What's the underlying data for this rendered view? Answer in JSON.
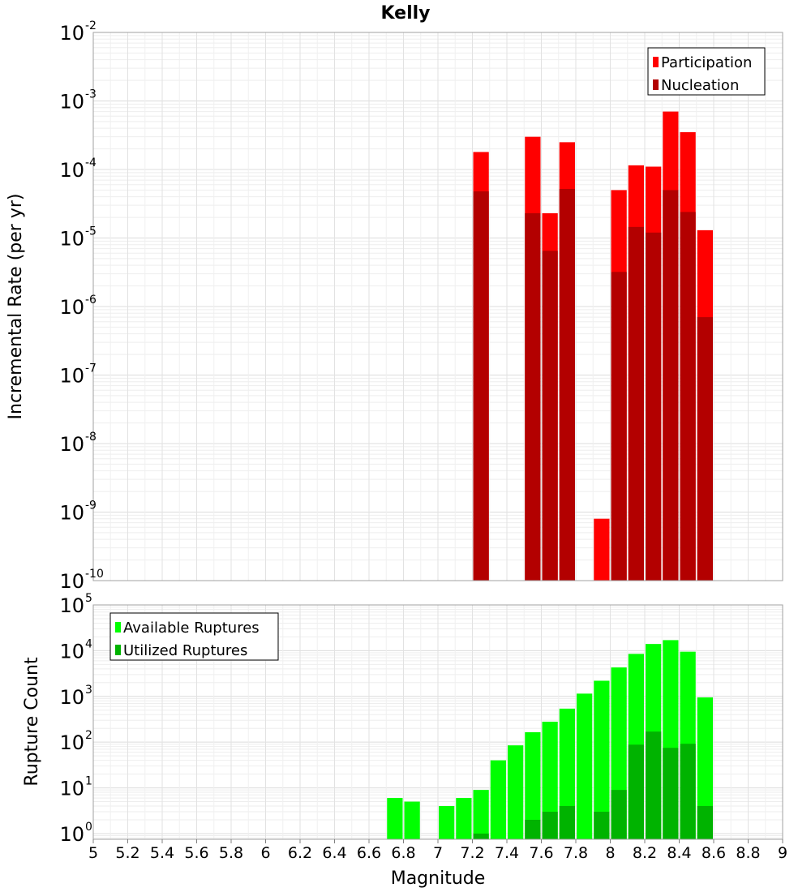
{
  "title": "Kelly",
  "colors": {
    "participation": "#ff0000",
    "nucleation": "#b30000",
    "available": "#00ff00",
    "utilized": "#00b300",
    "grid": "#e6e6e6",
    "frame": "#a0a0a0"
  },
  "chart_data": [
    {
      "type": "bar",
      "panel": "top",
      "ylabel": "Incremental Rate (per yr)",
      "yscale": "log",
      "ylim": [
        1e-10,
        0.01
      ],
      "xlim": [
        5,
        9
      ],
      "grid": true,
      "legend_position": "top-right",
      "series": [
        {
          "name": "Participation",
          "x": [
            7.25,
            7.55,
            7.65,
            7.75,
            7.95,
            8.05,
            8.15,
            8.25,
            8.35,
            8.45,
            8.55
          ],
          "values": [
            0.00018,
            0.0003,
            2.3e-05,
            0.00025,
            8e-10,
            5e-05,
            0.000115,
            0.00011,
            0.0007,
            0.00035,
            1.3e-05
          ]
        },
        {
          "name": "Nucleation",
          "x": [
            7.25,
            7.55,
            7.65,
            7.75,
            7.95,
            8.05,
            8.15,
            8.25,
            8.35,
            8.45,
            8.55
          ],
          "values": [
            4.8e-05,
            2.3e-05,
            6.5e-06,
            5.2e-05,
            0,
            3.2e-06,
            1.45e-05,
            1.2e-05,
            5e-05,
            2.4e-05,
            7e-07
          ]
        }
      ]
    },
    {
      "type": "bar",
      "panel": "bottom",
      "xlabel": "Magnitude",
      "ylabel": "Rupture Count",
      "yscale": "log",
      "ylim": [
        0.75,
        100000.0
      ],
      "xlim": [
        5,
        9
      ],
      "grid": true,
      "legend_position": "top-left",
      "series": [
        {
          "name": "Available Ruptures",
          "x": [
            6.75,
            6.85,
            7.05,
            7.15,
            7.25,
            7.35,
            7.45,
            7.55,
            7.65,
            7.75,
            7.85,
            7.95,
            8.05,
            8.15,
            8.25,
            8.35,
            8.45,
            8.55
          ],
          "values": [
            6,
            5,
            4,
            6,
            9,
            40,
            85,
            165,
            280,
            540,
            1150,
            2200,
            4300,
            8500,
            14000,
            17000,
            9500,
            950
          ]
        },
        {
          "name": "Utilized Ruptures",
          "x": [
            6.75,
            6.85,
            7.05,
            7.15,
            7.25,
            7.35,
            7.45,
            7.55,
            7.65,
            7.75,
            7.85,
            7.95,
            8.05,
            8.15,
            8.25,
            8.35,
            8.45,
            8.55
          ],
          "values": [
            0,
            0,
            0,
            0,
            1,
            0,
            0,
            2,
            3,
            4,
            0,
            3,
            9,
            88,
            170,
            75,
            92,
            4
          ]
        }
      ]
    }
  ],
  "x_ticks": [
    "5",
    "5.2",
    "5.4",
    "5.6",
    "5.8",
    "6",
    "6.2",
    "6.4",
    "6.6",
    "6.8",
    "7",
    "7.2",
    "7.4",
    "7.6",
    "7.8",
    "8",
    "8.2",
    "8.4",
    "8.6",
    "8.8",
    "9"
  ],
  "top_y_ticks": [
    {
      "base": "10",
      "exp": "-2"
    },
    {
      "base": "10",
      "exp": "-3"
    },
    {
      "base": "10",
      "exp": "-4"
    },
    {
      "base": "10",
      "exp": "-5"
    },
    {
      "base": "10",
      "exp": "-6"
    },
    {
      "base": "10",
      "exp": "-7"
    },
    {
      "base": "10",
      "exp": "-8"
    },
    {
      "base": "10",
      "exp": "-9"
    },
    {
      "base": "10",
      "exp": "-10"
    }
  ],
  "bottom_y_ticks": [
    {
      "base": "10",
      "exp": "5"
    },
    {
      "base": "10",
      "exp": "4"
    },
    {
      "base": "10",
      "exp": "3"
    },
    {
      "base": "10",
      "exp": "2"
    },
    {
      "base": "10",
      "exp": "1"
    },
    {
      "base": "10",
      "exp": "0"
    }
  ]
}
